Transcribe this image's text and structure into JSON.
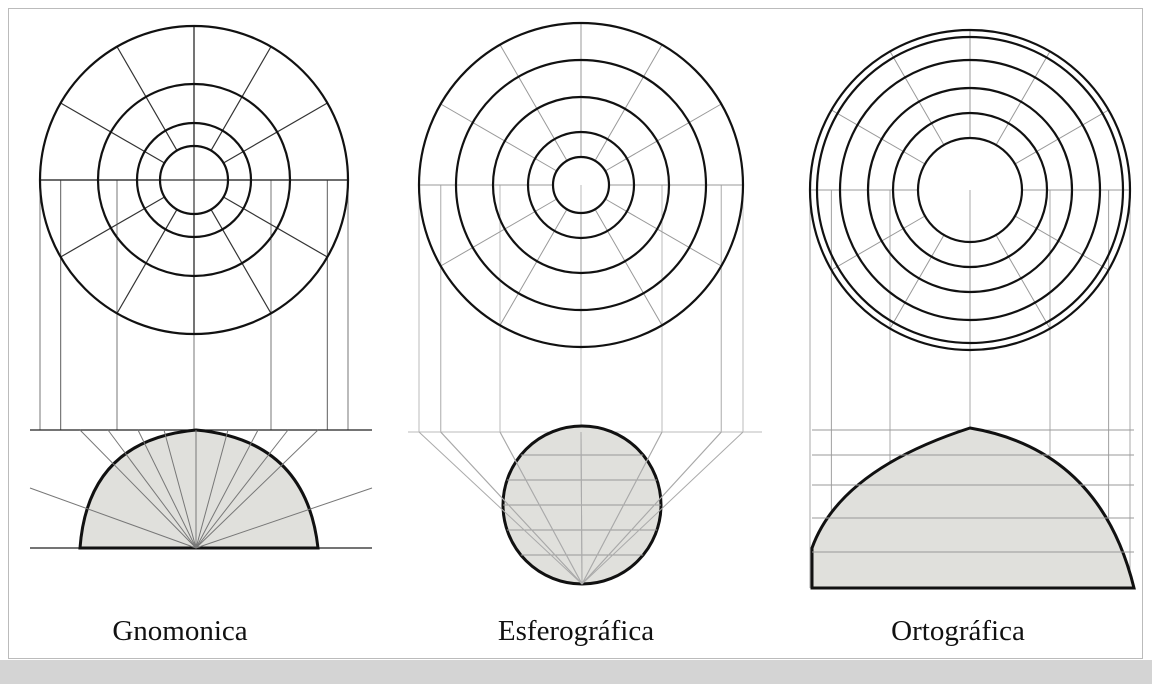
{
  "labels": [
    "Gnomonica",
    "Esferográfica",
    "Ortográfica"
  ]
}
